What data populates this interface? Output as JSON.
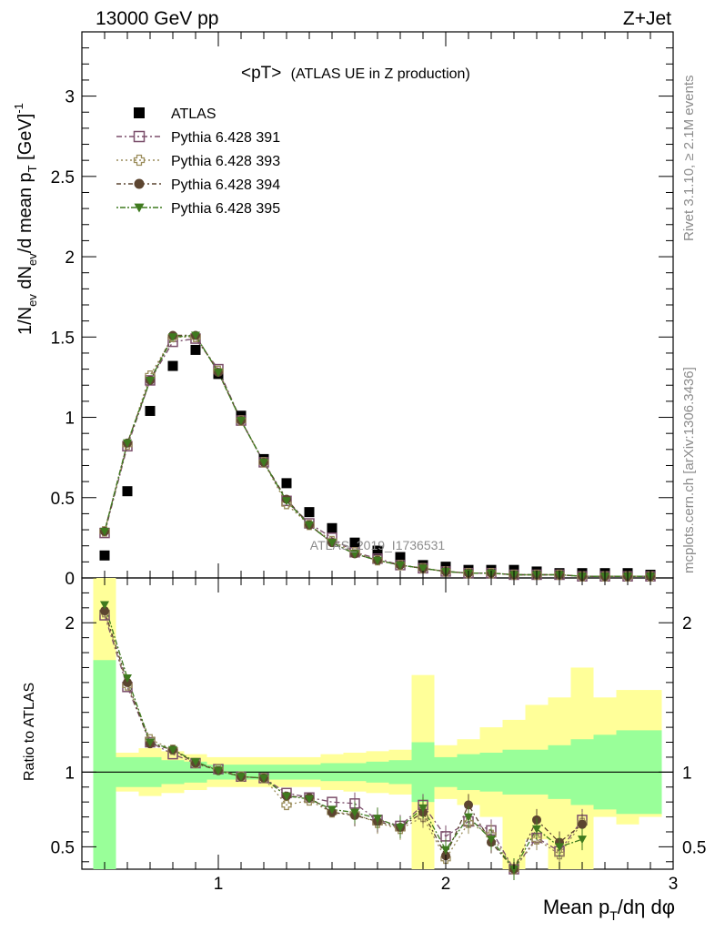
{
  "header": {
    "left": "13000 GeV pp",
    "right": "Z+Jet"
  },
  "side_labels": {
    "rivet": "Rivet 3.1.10, ≥ 2.1M events",
    "mcplots": "mcplots.cern.ch [arXiv:1306.3436]"
  },
  "watermark": "ATLAS_2019_I1736531",
  "main_title": {
    "main": "<pT>",
    "sub": "(ATLAS UE in Z production)"
  },
  "y_title_main": "1/N_ev dN_ev/d mean p_T [GeV]^-1",
  "y_title_ratio": "Ratio to ATLAS",
  "x_title": "Mean p_T/dη dφ",
  "legend": [
    {
      "label": "ATLAS",
      "marker": "filled-square",
      "color": "#000000"
    },
    {
      "label": "Pythia 6.428 391",
      "marker": "open-square",
      "color": "#7b4f6b"
    },
    {
      "label": "Pythia 6.428 393",
      "marker": "open-cross",
      "color": "#9a8c5a"
    },
    {
      "label": "Pythia 6.428 394",
      "marker": "filled-circle",
      "color": "#5c4530"
    },
    {
      "label": "Pythia 6.428 395",
      "marker": "filled-triangle",
      "color": "#3f7a1f"
    }
  ],
  "axes": {
    "x_ticks": [
      "1",
      "2",
      "3"
    ],
    "y_ticks_main": [
      "0",
      "0.5",
      "1",
      "1.5",
      "2",
      "2.5",
      "3"
    ],
    "y_ticks_ratio": [
      "0.5",
      "1",
      "2"
    ]
  },
  "chart_data": {
    "type": "scatter",
    "xlabel": "Mean p_T/dη dφ",
    "ylabel": "1/N_ev dN_ev/d mean p_T [GeV]^-1",
    "xlim": [
      0.4,
      3.0
    ],
    "ylim": [
      0,
      3.4
    ],
    "ratio_ylim": [
      0.35,
      2.3
    ],
    "x": [
      0.5,
      0.6,
      0.7,
      0.8,
      0.9,
      1.0,
      1.1,
      1.2,
      1.3,
      1.4,
      1.5,
      1.6,
      1.7,
      1.8,
      1.9,
      2.0,
      2.1,
      2.2,
      2.3,
      2.4,
      2.5,
      2.6,
      2.7,
      2.8,
      2.9
    ],
    "bin_edges": [
      0.45,
      0.55,
      0.65,
      0.75,
      0.85,
      0.95,
      1.05,
      1.15,
      1.25,
      1.35,
      1.45,
      1.55,
      1.65,
      1.75,
      1.85,
      1.95,
      2.05,
      2.15,
      2.25,
      2.35,
      2.45,
      2.55,
      2.65,
      2.75,
      2.85,
      2.95
    ],
    "series": [
      {
        "name": "ATLAS",
        "values": [
          0.14,
          0.54,
          1.04,
          1.32,
          1.42,
          1.27,
          1.01,
          0.74,
          0.59,
          0.41,
          0.31,
          0.22,
          0.17,
          0.13,
          0.08,
          0.07,
          0.05,
          0.05,
          0.05,
          0.04,
          0.03,
          0.03,
          0.03,
          0.03,
          0.02
        ]
      },
      {
        "name": "Pythia 6.428 391",
        "values": [
          0.28,
          0.82,
          1.23,
          1.47,
          1.49,
          1.3,
          0.98,
          0.72,
          0.48,
          0.34,
          0.25,
          0.16,
          0.12,
          0.08,
          0.06,
          0.04,
          0.03,
          0.03,
          0.02,
          0.02,
          0.02,
          0.01,
          0.01,
          0.01,
          0.01
        ]
      },
      {
        "name": "Pythia 6.428 393",
        "values": [
          0.29,
          0.83,
          1.26,
          1.5,
          1.5,
          1.29,
          0.98,
          0.72,
          0.46,
          0.33,
          0.23,
          0.16,
          0.11,
          0.08,
          0.06,
          0.04,
          0.03,
          0.03,
          0.02,
          0.02,
          0.02,
          0.01,
          0.01,
          0.01,
          0.01
        ]
      },
      {
        "name": "Pythia 6.428 394",
        "values": [
          0.29,
          0.84,
          1.23,
          1.51,
          1.51,
          1.28,
          0.98,
          0.72,
          0.49,
          0.33,
          0.22,
          0.15,
          0.11,
          0.08,
          0.06,
          0.04,
          0.03,
          0.03,
          0.02,
          0.02,
          0.02,
          0.01,
          0.01,
          0.01,
          0.01
        ]
      },
      {
        "name": "Pythia 6.428 395",
        "values": [
          0.29,
          0.84,
          1.23,
          1.5,
          1.51,
          1.28,
          0.98,
          0.72,
          0.48,
          0.33,
          0.22,
          0.15,
          0.11,
          0.08,
          0.06,
          0.04,
          0.03,
          0.03,
          0.02,
          0.02,
          0.02,
          0.01,
          0.01,
          0.01,
          0.01
        ]
      }
    ],
    "ratio_series": [
      {
        "name": "Pythia 6.428 391",
        "values": [
          2.05,
          1.57,
          1.2,
          1.12,
          1.06,
          1.02,
          0.97,
          0.96,
          0.86,
          0.83,
          0.8,
          0.79,
          0.68,
          0.64,
          0.78,
          0.57,
          0.67,
          0.61,
          0.32,
          0.56,
          0.47,
          0.68,
          null,
          null,
          null
        ]
      },
      {
        "name": "Pythia 6.428 393",
        "values": [
          2.07,
          1.58,
          1.22,
          1.15,
          1.06,
          1.02,
          0.97,
          0.96,
          0.78,
          0.81,
          0.73,
          0.72,
          0.66,
          0.62,
          0.7,
          0.42,
          0.66,
          0.58,
          0.34,
          0.55,
          0.45,
          0.66,
          null,
          null,
          null
        ]
      },
      {
        "name": "Pythia 6.428 394",
        "values": [
          2.08,
          1.6,
          1.19,
          1.15,
          1.06,
          1.01,
          0.97,
          0.96,
          0.84,
          0.83,
          0.73,
          0.71,
          0.67,
          0.63,
          0.73,
          0.44,
          0.78,
          0.53,
          0.33,
          0.68,
          0.53,
          0.65,
          null,
          null,
          null
        ]
      },
      {
        "name": "Pythia 6.428 395",
        "values": [
          2.12,
          1.63,
          1.2,
          1.15,
          1.07,
          1.01,
          0.97,
          0.96,
          0.84,
          0.82,
          0.75,
          0.73,
          0.69,
          0.63,
          0.76,
          0.48,
          0.7,
          0.55,
          0.33,
          0.62,
          0.5,
          0.55,
          null,
          null,
          null
        ]
      }
    ],
    "ratio_band_1sigma": [
      [
        0.35,
        1.75
      ],
      [
        0.9,
        1.1
      ],
      [
        0.9,
        1.1
      ],
      [
        0.92,
        1.08
      ],
      [
        0.93,
        1.07
      ],
      [
        0.95,
        1.05
      ],
      [
        0.95,
        1.05
      ],
      [
        0.95,
        1.05
      ],
      [
        0.95,
        1.05
      ],
      [
        0.95,
        1.05
      ],
      [
        0.94,
        1.06
      ],
      [
        0.94,
        1.06
      ],
      [
        0.93,
        1.07
      ],
      [
        0.92,
        1.08
      ],
      [
        0.8,
        1.2
      ],
      [
        0.9,
        1.1
      ],
      [
        0.88,
        1.12
      ],
      [
        0.87,
        1.13
      ],
      [
        0.85,
        1.15
      ],
      [
        0.85,
        1.15
      ],
      [
        0.82,
        1.18
      ],
      [
        0.78,
        1.22
      ],
      [
        0.75,
        1.25
      ],
      [
        0.72,
        1.28
      ],
      [
        0.72,
        1.28
      ]
    ],
    "ratio_band_2sigma": [
      [
        0.35,
        2.3
      ],
      [
        0.87,
        1.13
      ],
      [
        0.84,
        1.16
      ],
      [
        0.86,
        1.14
      ],
      [
        0.88,
        1.12
      ],
      [
        0.9,
        1.1
      ],
      [
        0.9,
        1.1
      ],
      [
        0.9,
        1.1
      ],
      [
        0.9,
        1.1
      ],
      [
        0.9,
        1.1
      ],
      [
        0.88,
        1.12
      ],
      [
        0.87,
        1.13
      ],
      [
        0.86,
        1.14
      ],
      [
        0.85,
        1.15
      ],
      [
        0.35,
        1.65
      ],
      [
        0.82,
        1.18
      ],
      [
        0.78,
        1.22
      ],
      [
        0.7,
        1.3
      ],
      [
        0.35,
        1.35
      ],
      [
        0.55,
        1.45
      ],
      [
        0.35,
        1.5
      ],
      [
        0.35,
        1.7
      ],
      [
        0.7,
        1.5
      ],
      [
        0.65,
        1.55
      ],
      [
        0.7,
        1.55
      ]
    ],
    "grid": false,
    "legend_position": "top-left"
  }
}
